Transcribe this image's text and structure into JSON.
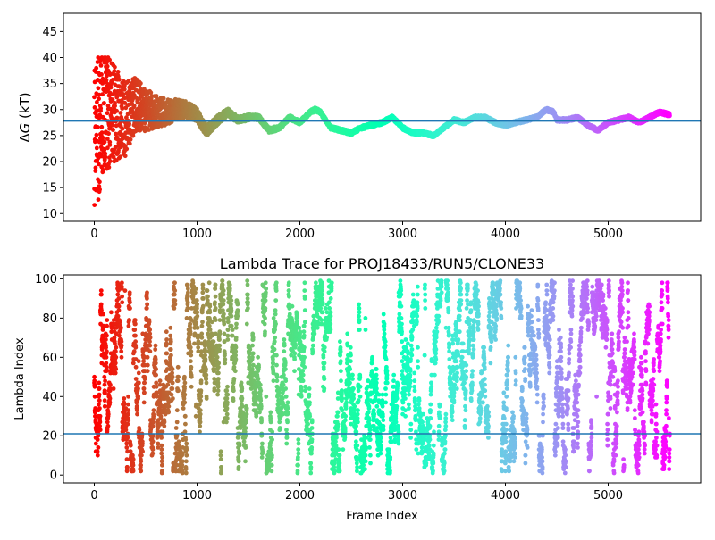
{
  "chart_data": [
    {
      "type": "scatter",
      "title": "",
      "xlabel": "",
      "ylabel_prefix": "Δ",
      "ylabel_var": "G",
      "ylabel_unit": " (kT)",
      "xlim": [
        -300,
        5900
      ],
      "ylim": [
        8.5,
        48.5
      ],
      "xticks": [
        0,
        1000,
        2000,
        3000,
        4000,
        5000
      ],
      "yticks": [
        10,
        15,
        20,
        25,
        30,
        35,
        40,
        45
      ],
      "hline": 27.8,
      "hline_color": "#1f77b4",
      "colormap": "rainbow",
      "n_points": 5600,
      "trace_x": [
        0,
        100,
        200,
        300,
        400,
        500,
        600,
        700,
        800,
        900,
        1000,
        1050,
        1100,
        1200,
        1300,
        1400,
        1500,
        1600,
        1700,
        1800,
        1900,
        2000,
        2100,
        2150,
        2200,
        2300,
        2400,
        2500,
        2600,
        2700,
        2800,
        2900,
        3000,
        3100,
        3200,
        3300,
        3400,
        3500,
        3600,
        3700,
        3800,
        3900,
        4000,
        4100,
        4200,
        4300,
        4400,
        4470,
        4500,
        4600,
        4700,
        4800,
        4900,
        5000,
        5100,
        5200,
        5300,
        5400,
        5500,
        5600
      ],
      "trace_y": [
        26,
        29,
        29,
        28,
        31,
        30,
        29.5,
        29.5,
        30,
        30,
        29,
        27,
        26,
        28,
        29.5,
        28,
        28.5,
        28.5,
        26,
        26.5,
        28.5,
        27.5,
        29.5,
        30,
        29.5,
        26.5,
        26,
        25.5,
        26.5,
        27,
        27.5,
        28.5,
        26.5,
        25.5,
        25.5,
        25,
        26.5,
        28,
        27.5,
        28.5,
        28.5,
        27.5,
        27,
        27.5,
        28,
        28.5,
        30,
        29.5,
        28,
        28,
        28.5,
        27,
        26,
        27.5,
        28,
        28.5,
        27.5,
        28.5,
        29.5,
        29
      ],
      "spread_start": 16,
      "spread_decay_frames": 350
    },
    {
      "type": "scatter",
      "title": "Lambda Trace for PROJ18433/RUN5/CLONE33",
      "xlabel": "Frame Index",
      "ylabel": "Lambda Index",
      "xlim": [
        -300,
        5900
      ],
      "ylim": [
        -4,
        102
      ],
      "xticks": [
        0,
        1000,
        2000,
        3000,
        4000,
        5000
      ],
      "yticks": [
        0,
        20,
        40,
        60,
        80,
        100
      ],
      "hline": 21,
      "hline_color": "#1f77b4",
      "colormap": "rainbow",
      "n_points": 5600,
      "lambda_min": 1,
      "lambda_max": 99
    }
  ]
}
